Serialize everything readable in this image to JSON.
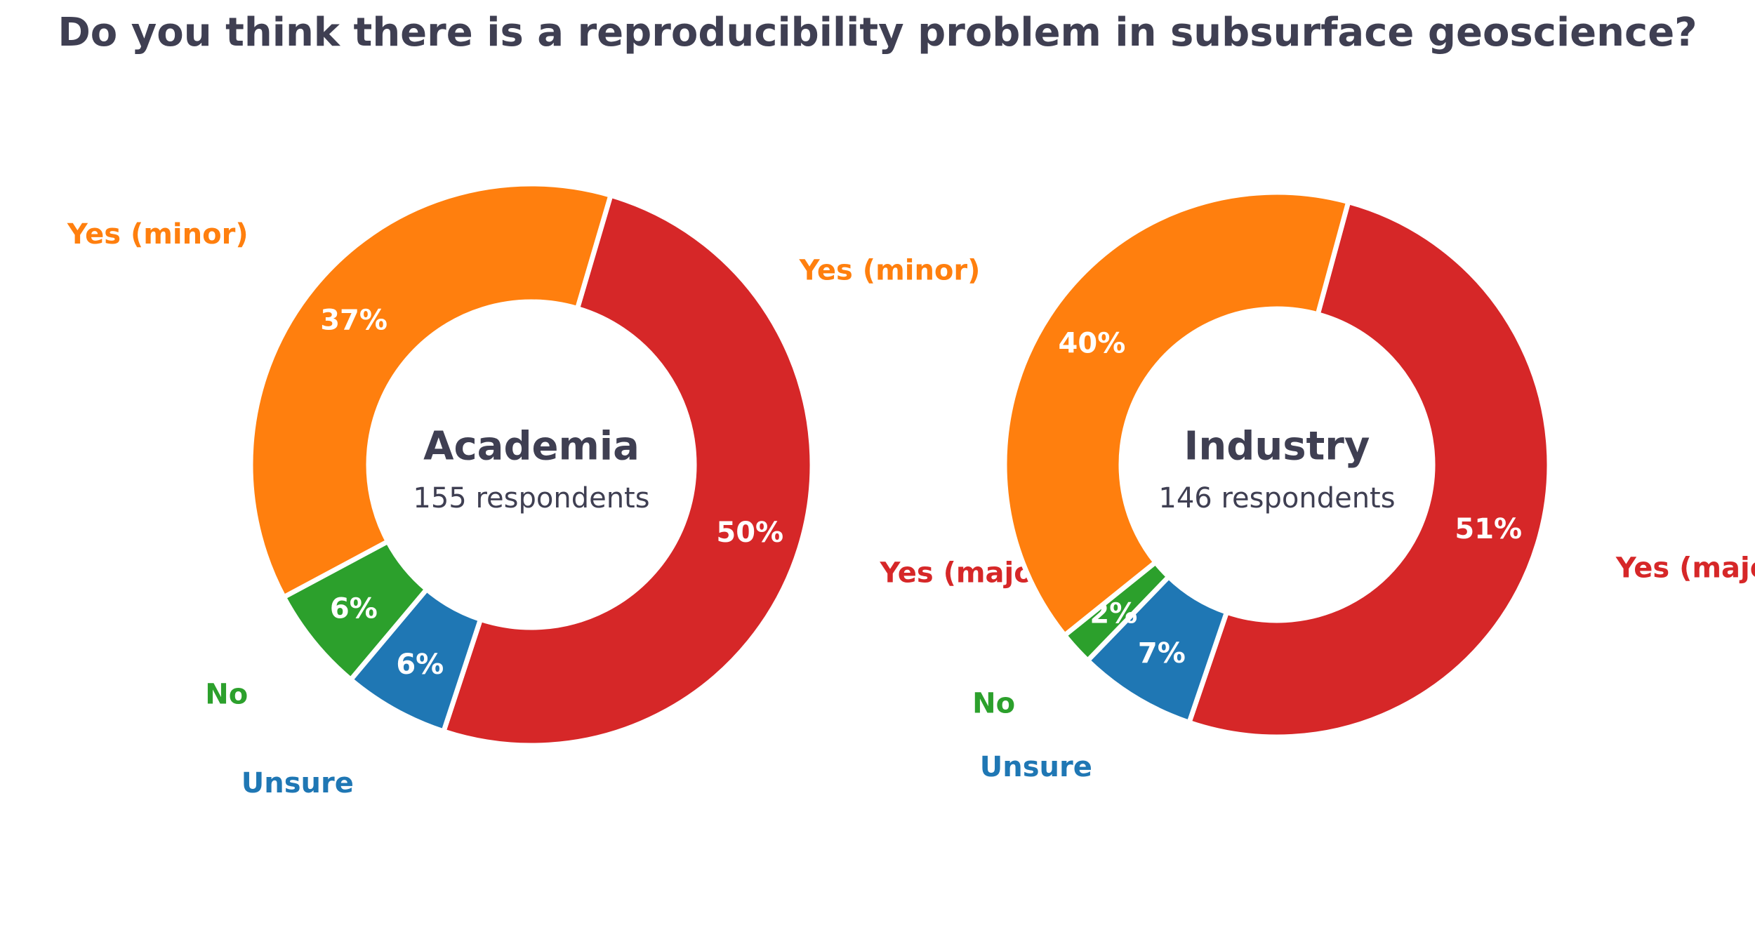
{
  "title": "Do you think there is a reproducibility problem in subsurface geoscience?",
  "chart_data": [
    {
      "type": "pie",
      "style": "donut",
      "center_title": "Academia",
      "center_subtitle": "155 respondents",
      "slices": [
        {
          "label": "Yes (major)",
          "value": 50,
          "pct_label": "50%",
          "color": "#d62728"
        },
        {
          "label": "Unsure",
          "value": 6,
          "pct_label": "6%",
          "color": "#1f77b4"
        },
        {
          "label": "No",
          "value": 6,
          "pct_label": "6%",
          "color": "#2ca02c"
        },
        {
          "label": "Yes (minor)",
          "value": 37,
          "pct_label": "37%",
          "color": "#ff7f0e"
        }
      ]
    },
    {
      "type": "pie",
      "style": "donut",
      "center_title": "Industry",
      "center_subtitle": "146 respondents",
      "slices": [
        {
          "label": "Yes (major)",
          "value": 51,
          "pct_label": "51%",
          "color": "#d62728"
        },
        {
          "label": "Unsure",
          "value": 7,
          "pct_label": "7%",
          "color": "#1f77b4"
        },
        {
          "label": "No",
          "value": 2,
          "pct_label": "2%",
          "color": "#2ca02c"
        },
        {
          "label": "Yes (minor)",
          "value": 40,
          "pct_label": "40%",
          "color": "#ff7f0e"
        }
      ]
    }
  ]
}
